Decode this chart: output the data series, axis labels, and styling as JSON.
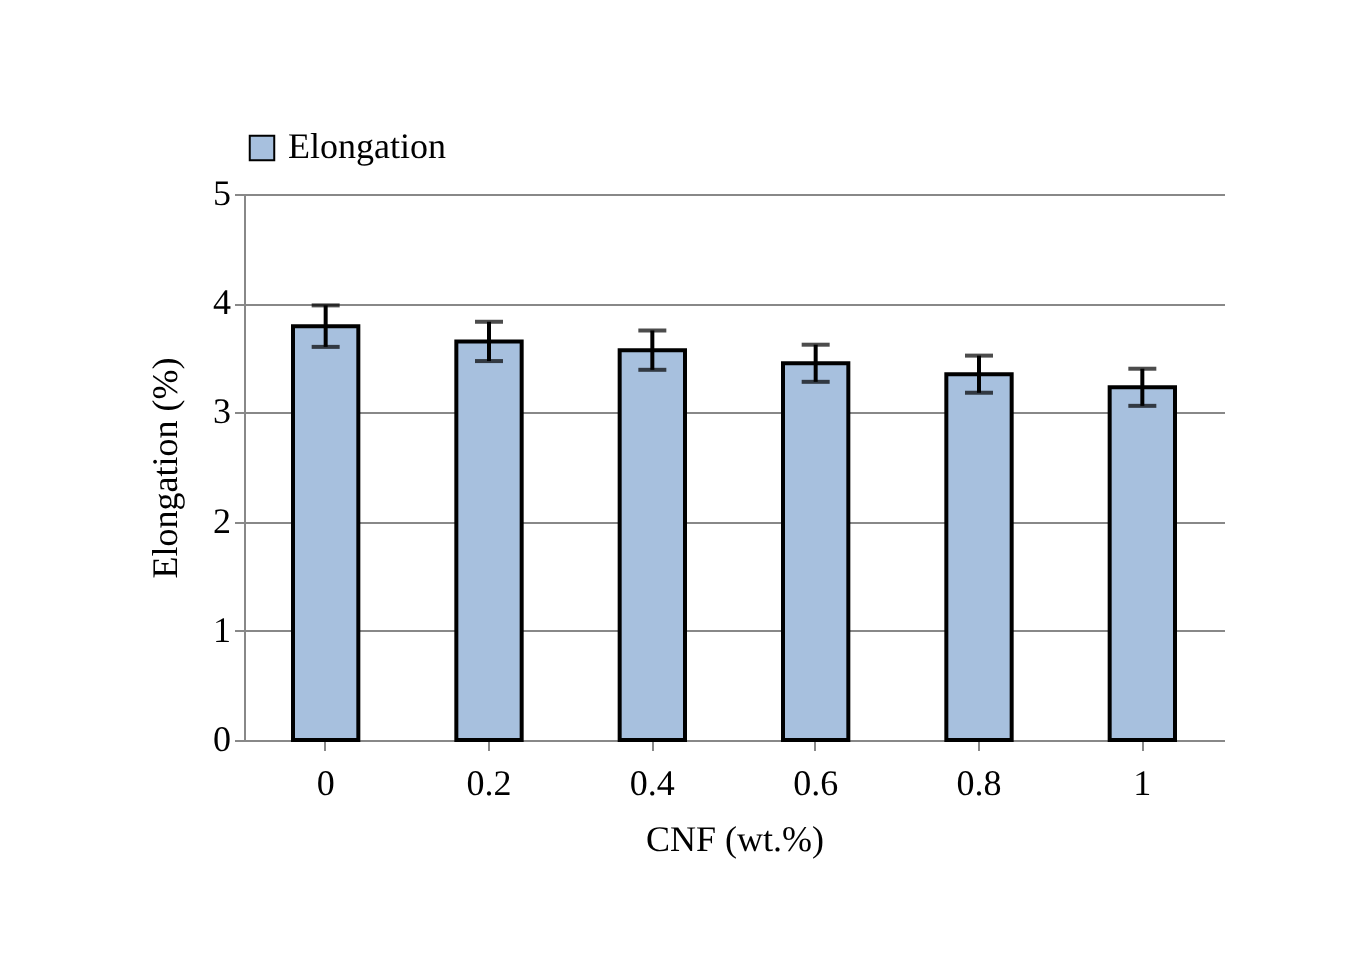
{
  "chart_data": {
    "type": "bar",
    "xlabel": "CNF (wt.%)",
    "ylabel": "Elongation (%)",
    "categories": [
      "0",
      "0.2",
      "0.4",
      "0.6",
      "0.8",
      "1"
    ],
    "series": [
      {
        "name": "Elongation",
        "color": "#a7c0de",
        "values": [
          3.79,
          3.65,
          3.57,
          3.45,
          3.35,
          3.23
        ],
        "errors": [
          0.19,
          0.18,
          0.18,
          0.17,
          0.17,
          0.17
        ]
      }
    ],
    "ylim": [
      0,
      5
    ],
    "yticks": [
      0,
      1,
      2,
      3,
      4,
      5
    ],
    "grid": "y",
    "legend": "top"
  }
}
